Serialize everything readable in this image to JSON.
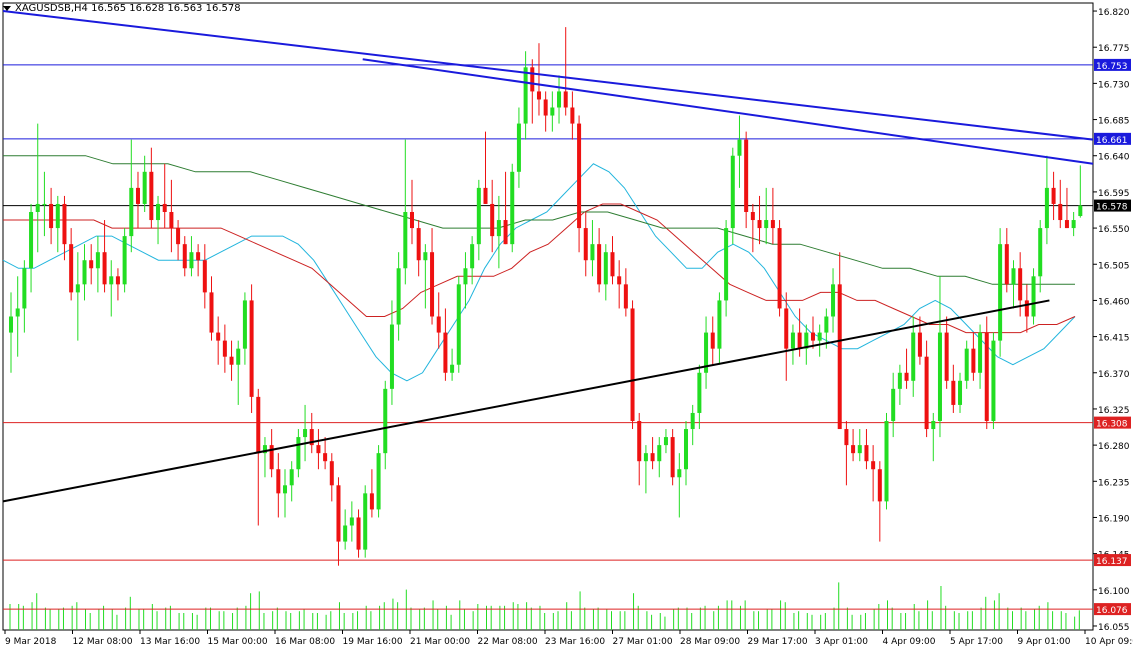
{
  "header": {
    "symbol": "XAGUSDSB,H4",
    "ohlc": "16.565 16.628 16.563 16.578"
  },
  "colors": {
    "bull": "#22dd22",
    "bear": "#ee1111",
    "ma_fast": "#22b5dd",
    "ma_mid": "#cc2222",
    "ma_slow": "#2e7d32",
    "trend_blue": "#1a1adc",
    "trend_black": "#000000",
    "hline_blue": "#1a1adc",
    "hline_red": "#dd2222",
    "price_label": "#1a1adc"
  },
  "chart_data": {
    "type": "candlestick",
    "symbol": "XAGUSDSB",
    "timeframe": "H4",
    "y_range": [
      16.05,
      16.83
    ],
    "y_ticks": [
      "16.820",
      "16.775",
      "16.730",
      "16.685",
      "16.640",
      "16.595",
      "16.550",
      "16.505",
      "16.460",
      "16.415",
      "16.370",
      "16.325",
      "16.280",
      "16.235",
      "16.190",
      "16.145",
      "16.100",
      "16.055"
    ],
    "x_ticks": [
      "9 Mar 2018",
      "12 Mar 08:00",
      "13 Mar 16:00",
      "15 Mar 00:00",
      "16 Mar 08:00",
      "19 Mar 16:00",
      "21 Mar 00:00",
      "22 Mar 08:00",
      "23 Mar 16:00",
      "27 Mar 01:00",
      "28 Mar 09:00",
      "29 Mar 17:00",
      "3 Apr 01:00",
      "4 Apr 09:00",
      "5 Apr 17:00",
      "9 Apr 01:00",
      "10 Apr 09:00"
    ],
    "candles": [
      [
        16.42,
        16.47,
        16.37,
        16.44
      ],
      [
        16.44,
        16.49,
        16.39,
        16.45
      ],
      [
        16.45,
        16.51,
        16.42,
        16.5
      ],
      [
        16.5,
        16.58,
        16.47,
        16.57
      ],
      [
        16.57,
        16.68,
        16.52,
        16.58
      ],
      [
        16.58,
        16.62,
        16.54,
        16.58
      ],
      [
        16.58,
        16.6,
        16.53,
        16.55
      ],
      [
        16.55,
        16.59,
        16.52,
        16.58
      ],
      [
        16.58,
        16.59,
        16.51,
        16.53
      ],
      [
        16.53,
        16.55,
        16.46,
        16.47
      ],
      [
        16.47,
        16.52,
        16.41,
        16.48
      ],
      [
        16.48,
        16.53,
        16.46,
        16.51
      ],
      [
        16.51,
        16.53,
        16.48,
        16.5
      ],
      [
        16.5,
        16.54,
        16.47,
        16.52
      ],
      [
        16.52,
        16.56,
        16.47,
        16.48
      ],
      [
        16.48,
        16.51,
        16.44,
        16.49
      ],
      [
        16.49,
        16.5,
        16.46,
        16.48
      ],
      [
        16.48,
        16.55,
        16.47,
        16.54
      ],
      [
        16.54,
        16.66,
        16.52,
        16.6
      ],
      [
        16.6,
        16.62,
        16.55,
        16.58
      ],
      [
        16.58,
        16.64,
        16.57,
        16.62
      ],
      [
        16.62,
        16.65,
        16.55,
        16.56
      ],
      [
        16.56,
        16.59,
        16.53,
        16.58
      ],
      [
        16.58,
        16.63,
        16.55,
        16.57
      ],
      [
        16.57,
        16.61,
        16.52,
        16.55
      ],
      [
        16.55,
        16.56,
        16.51,
        16.53
      ],
      [
        16.53,
        16.54,
        16.49,
        16.5
      ],
      [
        16.5,
        16.54,
        16.49,
        16.52
      ],
      [
        16.52,
        16.53,
        16.49,
        16.51
      ],
      [
        16.51,
        16.53,
        16.45,
        16.47
      ],
      [
        16.47,
        16.49,
        16.41,
        16.42
      ],
      [
        16.42,
        16.44,
        16.38,
        16.41
      ],
      [
        16.41,
        16.43,
        16.37,
        16.39
      ],
      [
        16.39,
        16.41,
        16.36,
        16.38
      ],
      [
        16.38,
        16.41,
        16.33,
        16.4
      ],
      [
        16.4,
        16.47,
        16.38,
        16.46
      ],
      [
        16.46,
        16.48,
        16.32,
        16.34
      ],
      [
        16.34,
        16.35,
        16.18,
        16.27
      ],
      [
        16.27,
        16.29,
        16.24,
        16.28
      ],
      [
        16.28,
        16.3,
        16.24,
        16.25
      ],
      [
        16.25,
        16.27,
        16.19,
        16.22
      ],
      [
        16.22,
        16.25,
        16.19,
        16.23
      ],
      [
        16.23,
        16.26,
        16.21,
        16.25
      ],
      [
        16.25,
        16.3,
        16.24,
        16.29
      ],
      [
        16.29,
        16.33,
        16.26,
        16.3
      ],
      [
        16.3,
        16.32,
        16.27,
        16.28
      ],
      [
        16.28,
        16.3,
        16.25,
        16.27
      ],
      [
        16.27,
        16.29,
        16.25,
        16.26
      ],
      [
        16.26,
        16.27,
        16.21,
        16.23
      ],
      [
        16.23,
        16.24,
        16.13,
        16.16
      ],
      [
        16.16,
        16.2,
        16.15,
        16.18
      ],
      [
        16.18,
        16.21,
        16.16,
        16.19
      ],
      [
        16.19,
        16.2,
        16.14,
        16.15
      ],
      [
        16.15,
        16.23,
        16.14,
        16.22
      ],
      [
        16.22,
        16.25,
        16.19,
        16.2
      ],
      [
        16.2,
        16.28,
        16.19,
        16.27
      ],
      [
        16.27,
        16.36,
        16.25,
        16.35
      ],
      [
        16.35,
        16.46,
        16.33,
        16.43
      ],
      [
        16.43,
        16.52,
        16.41,
        16.5
      ],
      [
        16.5,
        16.66,
        16.48,
        16.57
      ],
      [
        16.57,
        16.61,
        16.53,
        16.55
      ],
      [
        16.55,
        16.56,
        16.49,
        16.51
      ],
      [
        16.51,
        16.53,
        16.45,
        16.52
      ],
      [
        16.52,
        16.55,
        16.43,
        16.44
      ],
      [
        16.44,
        16.47,
        16.4,
        16.42
      ],
      [
        16.42,
        16.45,
        16.36,
        16.37
      ],
      [
        16.37,
        16.4,
        16.36,
        16.38
      ],
      [
        16.38,
        16.49,
        16.37,
        16.48
      ],
      [
        16.48,
        16.52,
        16.45,
        16.5
      ],
      [
        16.5,
        16.54,
        16.48,
        16.53
      ],
      [
        16.53,
        16.61,
        16.51,
        16.6
      ],
      [
        16.6,
        16.67,
        16.58,
        16.58
      ],
      [
        16.58,
        16.61,
        16.52,
        16.54
      ],
      [
        16.54,
        16.59,
        16.5,
        16.56
      ],
      [
        16.56,
        16.62,
        16.53,
        16.53
      ],
      [
        16.53,
        16.63,
        16.52,
        16.62
      ],
      [
        16.62,
        16.7,
        16.6,
        16.68
      ],
      [
        16.68,
        16.77,
        16.66,
        16.75
      ],
      [
        16.75,
        16.76,
        16.68,
        16.72
      ],
      [
        16.72,
        16.78,
        16.69,
        16.71
      ],
      [
        16.71,
        16.72,
        16.67,
        16.69
      ],
      [
        16.69,
        16.72,
        16.67,
        16.7
      ],
      [
        16.7,
        16.74,
        16.68,
        16.72
      ],
      [
        16.72,
        16.8,
        16.69,
        16.7
      ],
      [
        16.7,
        16.72,
        16.66,
        16.68
      ],
      [
        16.68,
        16.69,
        16.52,
        16.55
      ],
      [
        16.55,
        16.57,
        16.49,
        16.51
      ],
      [
        16.51,
        16.56,
        16.49,
        16.53
      ],
      [
        16.53,
        16.55,
        16.47,
        16.48
      ],
      [
        16.48,
        16.53,
        16.46,
        16.52
      ],
      [
        16.52,
        16.54,
        16.48,
        16.49
      ],
      [
        16.49,
        16.51,
        16.45,
        16.48
      ],
      [
        16.48,
        16.5,
        16.44,
        16.45
      ],
      [
        16.45,
        16.46,
        16.3,
        16.31
      ],
      [
        16.31,
        16.32,
        16.23,
        16.26
      ],
      [
        16.26,
        16.28,
        16.22,
        16.27
      ],
      [
        16.27,
        16.29,
        16.25,
        16.26
      ],
      [
        16.26,
        16.29,
        16.24,
        16.28
      ],
      [
        16.28,
        16.3,
        16.27,
        16.29
      ],
      [
        16.29,
        16.3,
        16.23,
        16.24
      ],
      [
        16.24,
        16.27,
        16.19,
        16.25
      ],
      [
        16.25,
        16.31,
        16.23,
        16.3
      ],
      [
        16.3,
        16.33,
        16.28,
        16.32
      ],
      [
        16.32,
        16.38,
        16.3,
        16.37
      ],
      [
        16.37,
        16.44,
        16.35,
        16.42
      ],
      [
        16.42,
        16.44,
        16.38,
        16.4
      ],
      [
        16.4,
        16.47,
        16.38,
        16.46
      ],
      [
        16.46,
        16.56,
        16.44,
        16.55
      ],
      [
        16.55,
        16.65,
        16.53,
        16.64
      ],
      [
        16.64,
        16.69,
        16.6,
        16.66
      ],
      [
        16.66,
        16.67,
        16.55,
        16.57
      ],
      [
        16.57,
        16.58,
        16.52,
        16.56
      ],
      [
        16.56,
        16.59,
        16.53,
        16.55
      ],
      [
        16.55,
        16.6,
        16.53,
        16.56
      ],
      [
        16.56,
        16.6,
        16.53,
        16.55
      ],
      [
        16.55,
        16.56,
        16.44,
        16.45
      ],
      [
        16.45,
        16.47,
        16.36,
        16.4
      ],
      [
        16.4,
        16.43,
        16.38,
        16.42
      ],
      [
        16.42,
        16.45,
        16.39,
        16.4
      ],
      [
        16.4,
        16.43,
        16.38,
        16.42
      ],
      [
        16.42,
        16.44,
        16.4,
        16.41
      ],
      [
        16.41,
        16.43,
        16.39,
        16.42
      ],
      [
        16.42,
        16.45,
        16.4,
        16.44
      ],
      [
        16.44,
        16.5,
        16.42,
        16.48
      ],
      [
        16.48,
        16.52,
        16.3,
        16.3
      ],
      [
        16.3,
        16.31,
        16.23,
        16.28
      ],
      [
        16.28,
        16.3,
        16.26,
        16.27
      ],
      [
        16.27,
        16.3,
        16.26,
        16.28
      ],
      [
        16.28,
        16.3,
        16.25,
        16.26
      ],
      [
        16.26,
        16.28,
        16.21,
        16.25
      ],
      [
        16.25,
        16.26,
        16.16,
        16.21
      ],
      [
        16.21,
        16.32,
        16.2,
        16.31
      ],
      [
        16.31,
        16.37,
        16.29,
        16.35
      ],
      [
        16.35,
        16.38,
        16.33,
        16.37
      ],
      [
        16.37,
        16.4,
        16.35,
        16.36
      ],
      [
        16.36,
        16.44,
        16.34,
        16.42
      ],
      [
        16.42,
        16.44,
        16.38,
        16.39
      ],
      [
        16.39,
        16.41,
        16.29,
        16.3
      ],
      [
        16.3,
        16.32,
        16.26,
        16.31
      ],
      [
        16.31,
        16.49,
        16.29,
        16.42
      ],
      [
        16.42,
        16.44,
        16.35,
        16.36
      ],
      [
        16.36,
        16.38,
        16.32,
        16.33
      ],
      [
        16.33,
        16.37,
        16.32,
        16.36
      ],
      [
        16.36,
        16.41,
        16.35,
        16.4
      ],
      [
        16.4,
        16.42,
        16.36,
        16.37
      ],
      [
        16.37,
        16.43,
        16.35,
        16.42
      ],
      [
        16.42,
        16.44,
        16.3,
        16.31
      ],
      [
        16.31,
        16.42,
        16.3,
        16.41
      ],
      [
        16.41,
        16.55,
        16.39,
        16.53
      ],
      [
        16.53,
        16.55,
        16.47,
        16.48
      ],
      [
        16.48,
        16.51,
        16.45,
        16.5
      ],
      [
        16.5,
        16.52,
        16.44,
        16.46
      ],
      [
        16.46,
        16.48,
        16.42,
        16.44
      ],
      [
        16.44,
        16.5,
        16.43,
        16.49
      ],
      [
        16.49,
        16.56,
        16.47,
        16.55
      ],
      [
        16.55,
        16.64,
        16.53,
        16.6
      ],
      [
        16.6,
        16.62,
        16.56,
        16.58
      ],
      [
        16.58,
        16.61,
        16.55,
        16.56
      ],
      [
        16.56,
        16.6,
        16.55,
        16.55
      ],
      [
        16.55,
        16.57,
        16.54,
        16.56
      ],
      [
        16.565,
        16.628,
        16.563,
        16.578
      ]
    ],
    "moving_averages": [
      {
        "name": "",
        "color": "#22b5dd",
        "values": [
          16.51,
          16.5,
          16.5,
          16.51,
          16.52,
          16.53,
          16.54,
          16.54,
          16.53,
          16.52,
          16.51,
          16.51,
          16.51,
          16.51,
          16.52,
          16.53,
          16.54,
          16.54,
          16.54,
          16.53,
          16.51,
          16.48,
          16.45,
          16.42,
          16.39,
          16.37,
          16.36,
          16.37,
          16.4,
          16.43,
          16.46,
          16.5,
          16.53,
          16.55,
          16.56,
          16.57,
          16.59,
          16.61,
          16.63,
          16.62,
          16.6,
          16.57,
          16.54,
          16.52,
          16.5,
          16.5,
          16.52,
          16.53,
          16.52,
          16.5,
          16.47,
          16.44,
          16.42,
          16.41,
          16.4,
          16.4,
          16.41,
          16.42,
          16.43,
          16.45,
          16.46,
          16.45,
          16.43,
          16.41,
          16.39,
          16.38,
          16.39,
          16.4,
          16.42,
          16.44
        ]
      },
      {
        "name": "",
        "color": "#cc2222",
        "values": [
          16.56,
          16.56,
          16.56,
          16.56,
          16.56,
          16.56,
          16.55,
          16.55,
          16.55,
          16.55,
          16.55,
          16.55,
          16.55,
          16.54,
          16.53,
          16.52,
          16.51,
          16.5,
          16.48,
          16.46,
          16.44,
          16.44,
          16.45,
          16.47,
          16.48,
          16.49,
          16.49,
          16.49,
          16.5,
          16.52,
          16.53,
          16.55,
          16.57,
          16.58,
          16.58,
          16.57,
          16.56,
          16.54,
          16.52,
          16.5,
          16.48,
          16.47,
          16.46,
          16.46,
          16.46,
          16.47,
          16.47,
          16.46,
          16.46,
          16.45,
          16.44,
          16.43,
          16.43,
          16.42,
          16.42,
          16.42,
          16.42,
          16.43,
          16.43,
          16.44
        ]
      },
      {
        "name": "",
        "color": "#2e7d32",
        "values": [
          16.64,
          16.64,
          16.64,
          16.64,
          16.63,
          16.63,
          16.63,
          16.62,
          16.62,
          16.62,
          16.61,
          16.6,
          16.59,
          16.58,
          16.57,
          16.56,
          16.55,
          16.55,
          16.55,
          16.56,
          16.56,
          16.57,
          16.57,
          16.56,
          16.55,
          16.55,
          16.55,
          16.54,
          16.53,
          16.53,
          16.52,
          16.51,
          16.5,
          16.5,
          16.49,
          16.49,
          16.48,
          16.48,
          16.48,
          16.48
        ]
      }
    ],
    "trend_lines": [
      {
        "color": "#1a1adc",
        "from": [
          0,
          16.82
        ],
        "to": [
          1,
          16.66
        ]
      },
      {
        "color": "#1a1adc",
        "from": [
          0.33,
          16.76
        ],
        "to": [
          1,
          16.63
        ]
      },
      {
        "color": "#000000",
        "from": [
          0,
          16.21
        ],
        "to": [
          0.96,
          16.46
        ]
      }
    ],
    "horizontal_lines": [
      {
        "value": 16.753,
        "label": "16.753",
        "color": "#1a1adc"
      },
      {
        "value": 16.661,
        "label": "16.661",
        "color": "#1a1adc"
      },
      {
        "value": 16.578,
        "label": "16.578",
        "color": "#000000"
      },
      {
        "value": 16.308,
        "label": "16.308",
        "color": "#dd2222"
      },
      {
        "value": 16.137,
        "label": "16.137",
        "color": "#dd2222"
      },
      {
        "value": 16.076,
        "label": "16.076",
        "color": "#dd2222"
      }
    ],
    "legend": "none",
    "grid": false
  }
}
